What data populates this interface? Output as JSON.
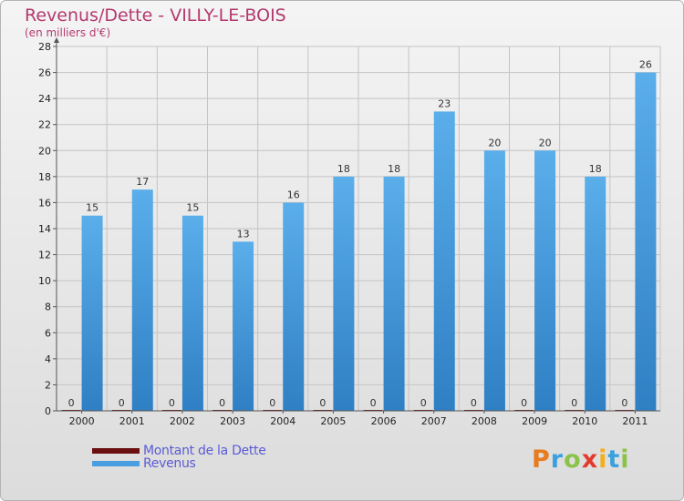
{
  "title": "Revenus/Dette - VILLY-LE-BOIS",
  "subtitle": "(en milliers d'€)",
  "logo": {
    "letters": [
      "P",
      "r",
      "o",
      "x",
      "i",
      "t",
      "i"
    ],
    "colors": [
      "#e87b1e",
      "#3aa1dd",
      "#8bc34a",
      "#e23b2e",
      "#f2b01c",
      "#3aa1dd",
      "#8bc34a"
    ]
  },
  "chart_data": {
    "type": "bar",
    "title": "Revenus/Dette - VILLY-LE-BOIS",
    "subtitle": "(en milliers d'€)",
    "xlabel": "",
    "ylabel": "",
    "ylim": [
      0,
      28
    ],
    "yticks": [
      0,
      2,
      4,
      6,
      8,
      10,
      12,
      14,
      16,
      18,
      20,
      22,
      24,
      26,
      28
    ],
    "categories": [
      "2000",
      "2001",
      "2002",
      "2003",
      "2004",
      "2005",
      "2006",
      "2007",
      "2008",
      "2009",
      "2010",
      "2011"
    ],
    "series": [
      {
        "name": "Montant de la Dette",
        "color": "#6b0f0f",
        "values": [
          0,
          0,
          0,
          0,
          0,
          0,
          0,
          0,
          0,
          0,
          0,
          0
        ]
      },
      {
        "name": "Revenus",
        "color": "#4a9ee0",
        "values": [
          15,
          17,
          15,
          13,
          16,
          18,
          18,
          23,
          20,
          20,
          18,
          26
        ]
      }
    ],
    "legend": "bottom-left",
    "grid": true
  }
}
